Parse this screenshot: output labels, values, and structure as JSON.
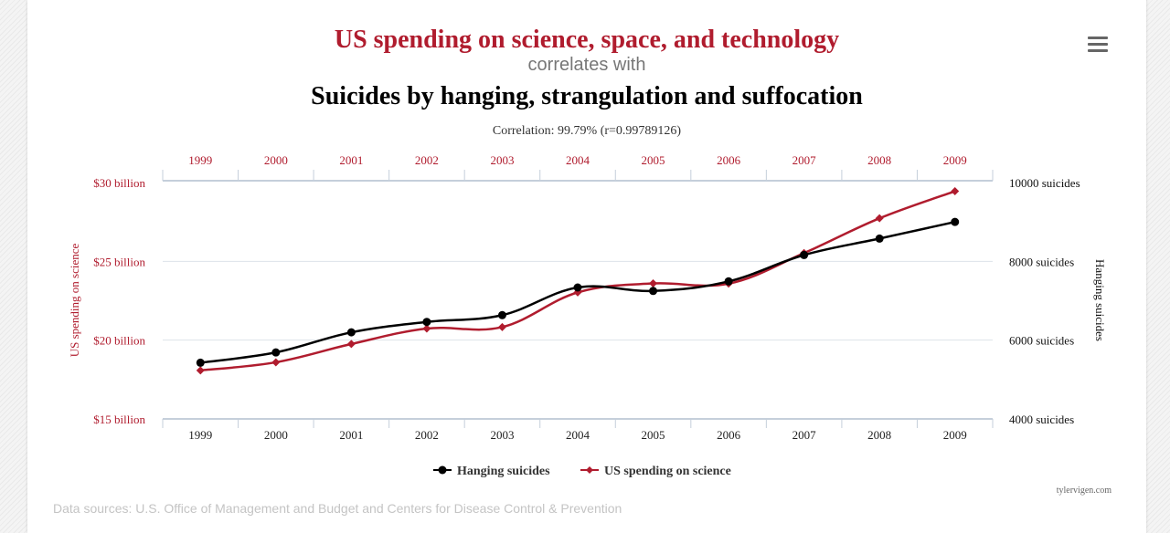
{
  "title": "US spending on science, space, and technology",
  "subtitle": "correlates with",
  "title2": "Suicides by hanging, strangulation and suffocation",
  "correlation": "Correlation: 99.79% (r=0.99789126)",
  "credit": "tylervigen.com",
  "data_sources": "Data sources: U.S. Office of Management and Budget and Centers for Disease Control & Prevention",
  "colors": {
    "spending": "#b01c2e",
    "suicides": "#000000",
    "title_red": "#b01c2e",
    "grid": "#dde3ea"
  },
  "chart_data": {
    "type": "line",
    "categories": [
      "1999",
      "2000",
      "2001",
      "2002",
      "2003",
      "2004",
      "2005",
      "2006",
      "2007",
      "2008",
      "2009"
    ],
    "series": [
      {
        "name": "Hanging suicides",
        "axis": "right",
        "marker": "circle",
        "values": [
          5427,
          5688,
          6198,
          6462,
          6635,
          7336,
          7248,
          7491,
          8161,
          8578,
          9000
        ]
      },
      {
        "name": "US spending on science",
        "axis": "left",
        "marker": "diamond",
        "values": [
          18.079,
          18.594,
          19.753,
          20.734,
          20.831,
          23.029,
          23.597,
          23.584,
          25.525,
          27.731,
          29.449
        ]
      }
    ],
    "yleft": {
      "label": "US spending on science",
      "min": 15,
      "max": 30,
      "ticks": [
        {
          "v": 30,
          "label": "$30 billion"
        },
        {
          "v": 25,
          "label": "$25 billion"
        },
        {
          "v": 20,
          "label": "$20 billion"
        },
        {
          "v": 15,
          "label": "$15 billion"
        }
      ]
    },
    "yright": {
      "label": "Hanging suicides",
      "min": 4000,
      "max": 10000,
      "ticks": [
        {
          "v": 10000,
          "label": "10000 suicides"
        },
        {
          "v": 8000,
          "label": "8000 suicides"
        },
        {
          "v": 6000,
          "label": "6000 suicides"
        },
        {
          "v": 4000,
          "label": "4000 suicides"
        }
      ]
    },
    "grid": true,
    "legend_position": "bottom-center",
    "legend": [
      "Hanging suicides",
      "US spending on science"
    ]
  }
}
